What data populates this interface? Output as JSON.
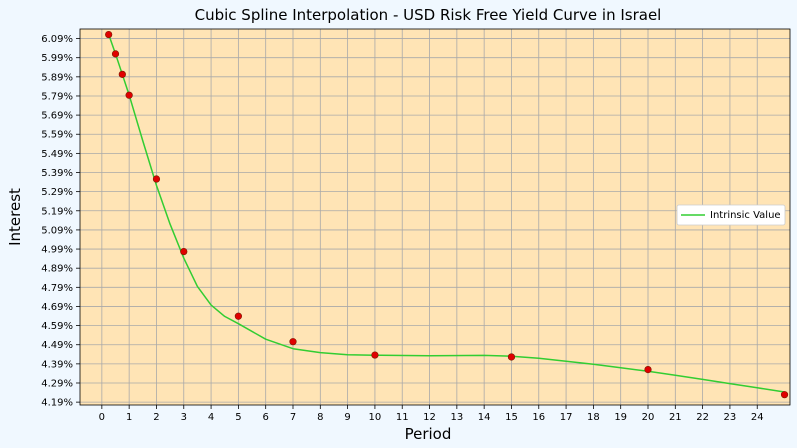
{
  "chart_data": {
    "type": "line",
    "title": "Cubic Spline Interpolation - USD Risk Free Yield Curve in Israel",
    "xlabel": "Period",
    "ylabel": "Interest",
    "xlim": [
      -0.8,
      25.2
    ],
    "ylim": [
      4.175,
      6.14
    ],
    "x_ticks": [
      0,
      1,
      2,
      3,
      4,
      5,
      6,
      7,
      8,
      9,
      10,
      11,
      12,
      13,
      14,
      15,
      16,
      17,
      18,
      19,
      20,
      21,
      22,
      23,
      24
    ],
    "x_tick_labels": [
      "0",
      "1",
      "2",
      "3",
      "4",
      "5",
      "6",
      "7",
      "8",
      "9",
      "10",
      "11",
      "12",
      "13",
      "14",
      "15",
      "16",
      "17",
      "18",
      "19",
      "20",
      "21",
      "22",
      "23",
      "24"
    ],
    "y_ticks": [
      4.19,
      4.29,
      4.39,
      4.49,
      4.59,
      4.69,
      4.79,
      4.89,
      4.99,
      5.09,
      5.19,
      5.29,
      5.39,
      5.49,
      5.59,
      5.69,
      5.79,
      5.89,
      5.99,
      6.09
    ],
    "y_tick_labels": [
      "4.19%",
      "4.29%",
      "4.39%",
      "4.49%",
      "4.59%",
      "4.69%",
      "4.79%",
      "4.89%",
      "4.99%",
      "5.09%",
      "5.19%",
      "5.29%",
      "5.39%",
      "5.49%",
      "5.59%",
      "5.69%",
      "5.79%",
      "5.89%",
      "5.99%",
      "6.09%"
    ],
    "grid": true,
    "legend_position": "center-right",
    "series": [
      {
        "name": "Intrinsic Value",
        "kind": "line",
        "color": "#32cd32",
        "x": [
          0.25,
          0.5,
          0.75,
          1,
          1.5,
          2,
          2.5,
          3,
          3.5,
          4,
          4.5,
          5,
          6,
          7,
          8,
          9,
          10,
          12,
          14,
          15,
          16,
          17,
          18,
          19,
          20,
          21,
          22,
          23,
          24,
          25
        ],
        "y": [
          6.111,
          6.01,
          5.903,
          5.794,
          5.555,
          5.322,
          5.12,
          4.942,
          4.795,
          4.697,
          4.638,
          4.6,
          4.519,
          4.469,
          4.449,
          4.438,
          4.435,
          4.432,
          4.434,
          4.43,
          4.419,
          4.404,
          4.388,
          4.37,
          4.351,
          4.33,
          4.309,
          4.287,
          4.265,
          4.243
        ]
      },
      {
        "name": "",
        "kind": "scatter",
        "color": "#e00000",
        "x": [
          0.25,
          0.5,
          0.75,
          1,
          2,
          3,
          5,
          7,
          10,
          15,
          20,
          25
        ],
        "y": [
          6.111,
          6.01,
          5.903,
          5.794,
          5.356,
          4.977,
          4.639,
          4.506,
          4.436,
          4.426,
          4.36,
          4.229
        ]
      }
    ]
  },
  "colors": {
    "page_background": "#f0f8ff",
    "plot_background": "#ffe4b5",
    "grid": "#a9a9a9",
    "line": "#32cd32",
    "marker": "#e00000"
  }
}
